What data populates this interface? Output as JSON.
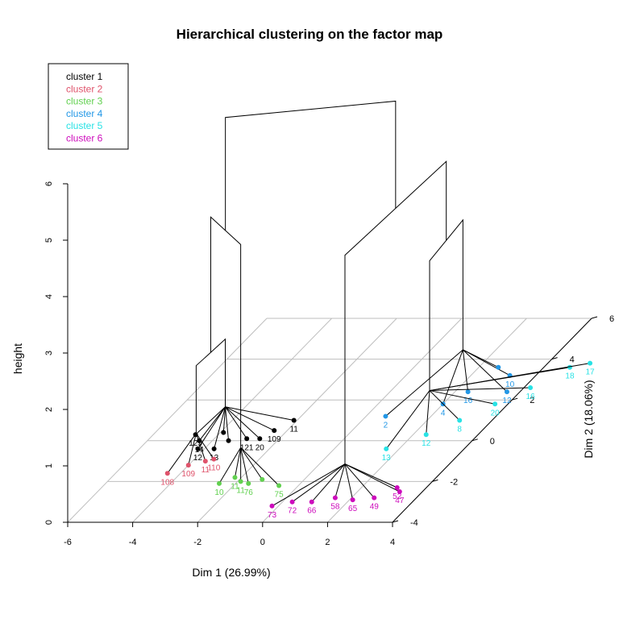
{
  "chart_data": {
    "type": "scatter",
    "title": "Hierarchical clustering on the factor map",
    "xlabel": "Dim 1 (26.99%)",
    "ylabel": "Dim 2 (18.06%)",
    "zlabel": "height",
    "xlim": [
      -6,
      4
    ],
    "ylim": [
      -4,
      6
    ],
    "zlim": [
      0,
      6
    ],
    "x_ticks": [
      "-6",
      "-4",
      "-2",
      "0",
      "2",
      "4"
    ],
    "y_ticks": [
      "-4",
      "-2",
      "0",
      "2",
      "4",
      "6"
    ],
    "z_ticks": [
      "0",
      "1",
      "2",
      "3",
      "4",
      "5",
      "6"
    ],
    "grid": true,
    "legend_position": "top-left",
    "legend": [
      {
        "label": "cluster 1",
        "color": "#000000"
      },
      {
        "label": "cluster 2",
        "color": "#DF536B"
      },
      {
        "label": "cluster 3",
        "color": "#61D04F"
      },
      {
        "label": "cluster 4",
        "color": "#2297E6"
      },
      {
        "label": "cluster 5",
        "color": "#28E2E5"
      },
      {
        "label": "cluster 6",
        "color": "#CD0BBC"
      }
    ],
    "clusters": [
      {
        "cluster": 1,
        "color": "#000000",
        "center": [
          -3.6,
          0.0
        ],
        "points": [
          {
            "x": -4.7,
            "y": 0.3,
            "label": "125"
          },
          {
            "x": -4.4,
            "y": 0.0,
            "label": "14"
          },
          {
            "x": -4.2,
            "y": -0.4,
            "label": "12"
          },
          {
            "x": -3.7,
            "y": -0.4,
            "label": "13"
          },
          {
            "x": -3.0,
            "y": 0.1,
            "label": "121"
          },
          {
            "x": -2.6,
            "y": 0.1,
            "label": "20"
          },
          {
            "x": -2.4,
            "y": 0.5,
            "label": "109"
          },
          {
            "x": -2.1,
            "y": 1.0,
            "label": "11"
          },
          {
            "x": -3.9,
            "y": 0.4,
            "label": ""
          },
          {
            "x": -3.5,
            "y": 0.0,
            "label": ""
          }
        ]
      },
      {
        "cluster": 2,
        "color": "#DF536B",
        "center": [
          -3.7,
          -1.3
        ],
        "points": [
          {
            "x": -4.4,
            "y": -1.6,
            "label": "108"
          },
          {
            "x": -4.0,
            "y": -1.2,
            "label": "109"
          },
          {
            "x": -3.6,
            "y": -1.0,
            "label": "11"
          },
          {
            "x": -3.4,
            "y": -0.9,
            "label": "110"
          }
        ]
      },
      {
        "cluster": 3,
        "color": "#61D04F",
        "center": [
          -1.9,
          -2.0
        ],
        "points": [
          {
            "x": -2.5,
            "y": -2.1,
            "label": "10"
          },
          {
            "x": -2.2,
            "y": -1.8,
            "label": "11"
          },
          {
            "x": -1.9,
            "y": -2.0,
            "label": "11"
          },
          {
            "x": -1.6,
            "y": -2.1,
            "label": "76"
          },
          {
            "x": -1.3,
            "y": -1.9,
            "label": ""
          },
          {
            "x": -0.6,
            "y": -2.2,
            "label": "75"
          }
        ]
      },
      {
        "cluster": 4,
        "color": "#2297E6",
        "center": [
          2.0,
          2.8
        ],
        "points": [
          {
            "x": 0.6,
            "y": 1.2,
            "label": "2"
          },
          {
            "x": 2.0,
            "y": 1.8,
            "label": "4"
          },
          {
            "x": 2.4,
            "y": 2.4,
            "label": "16"
          },
          {
            "x": 3.2,
            "y": 3.2,
            "label": "10"
          },
          {
            "x": 3.6,
            "y": 2.4,
            "label": "12"
          },
          {
            "x": 2.6,
            "y": 3.6,
            "label": ""
          }
        ]
      },
      {
        "cluster": 5,
        "color": "#28E2E5",
        "center": [
          2.2,
          0.8
        ],
        "points": [
          {
            "x": 1.6,
            "y": -0.4,
            "label": "13"
          },
          {
            "x": 2.4,
            "y": 0.3,
            "label": "12"
          },
          {
            "x": 3.0,
            "y": 1.0,
            "label": "8"
          },
          {
            "x": 3.6,
            "y": 1.8,
            "label": "20"
          },
          {
            "x": 4.2,
            "y": 2.6,
            "label": "16"
          },
          {
            "x": 4.8,
            "y": 3.6,
            "label": "18"
          },
          {
            "x": 5.3,
            "y": 3.8,
            "label": "17"
          }
        ]
      },
      {
        "cluster": 6,
        "color": "#CD0BBC",
        "center": [
          1.8,
          -2.8
        ],
        "points": [
          {
            "x": -0.2,
            "y": -3.2,
            "label": "73"
          },
          {
            "x": 0.3,
            "y": -3.0,
            "label": "72"
          },
          {
            "x": 0.9,
            "y": -3.0,
            "label": "66"
          },
          {
            "x": 1.5,
            "y": -2.8,
            "label": "58"
          },
          {
            "x": 2.1,
            "y": -2.9,
            "label": "65"
          },
          {
            "x": 2.7,
            "y": -2.8,
            "label": "49"
          },
          {
            "x": 3.3,
            "y": -2.5,
            "label": "47"
          },
          {
            "x": 3.1,
            "y": -2.3,
            "label": "52"
          }
        ]
      }
    ],
    "dendrogram": {
      "merges": [
        {
          "a": [
            -3.7,
            -1.3,
            0.6
          ],
          "b": [
            -3.6,
            0.0,
            0.6
          ],
          "height": 1.8
        },
        {
          "a": [
            -3.65,
            -0.65,
            1.8
          ],
          "b": [
            -1.9,
            -2.0,
            0.6
          ],
          "height": 4.2
        },
        {
          "a": [
            2.0,
            2.8,
            0.6
          ],
          "b": [
            2.2,
            0.8,
            0.6
          ],
          "height": 2.9
        },
        {
          "a": [
            2.1,
            1.8,
            2.9
          ],
          "b": [
            1.8,
            -2.8,
            0.6
          ],
          "height": 4.3
        },
        {
          "a": [
            -2.8,
            -1.3,
            4.2
          ],
          "b": [
            1.95,
            -0.5,
            4.3
          ],
          "height": 6.2
        }
      ]
    }
  }
}
